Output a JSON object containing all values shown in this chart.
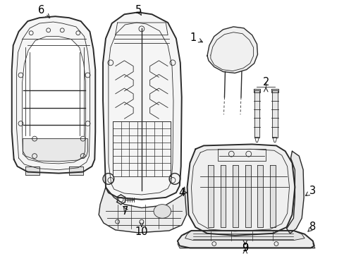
{
  "background_color": "#ffffff",
  "line_color": "#2a2a2a",
  "figsize": [
    4.89,
    3.6
  ],
  "dpi": 100,
  "label_fontsize": 10.5
}
